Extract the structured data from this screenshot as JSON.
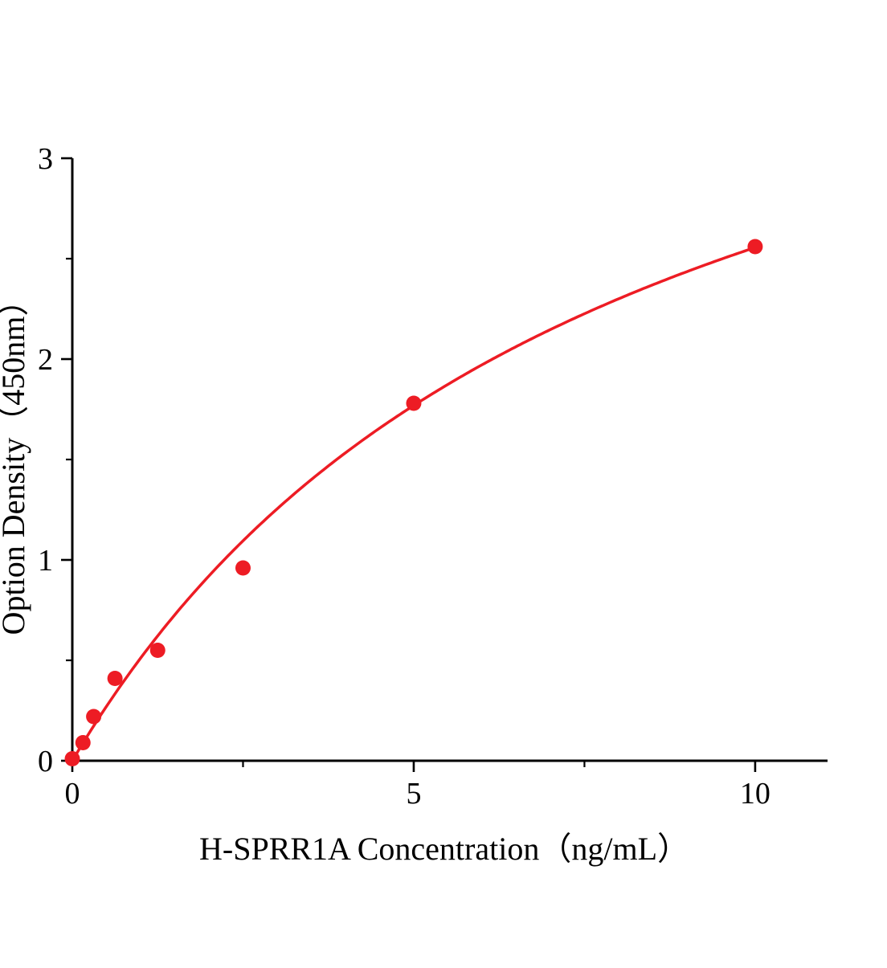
{
  "chart_data": {
    "type": "scatter",
    "title": "",
    "xlabel": "H-SPRR1A Concentration（ng/mL）",
    "ylabel": "Option Density（450nm）",
    "x": [
      0,
      0.156,
      0.313,
      0.625,
      1.25,
      2.5,
      5,
      10
    ],
    "y": [
      0.01,
      0.09,
      0.22,
      0.41,
      0.55,
      0.96,
      1.78,
      2.56
    ],
    "xlim": [
      0,
      11.06
    ],
    "ylim": [
      0,
      3
    ],
    "x_major_ticks": [
      0,
      5,
      10
    ],
    "x_minor_ticks": [
      2.5,
      7.5
    ],
    "y_major_ticks": [
      0,
      1,
      2,
      3
    ],
    "y_minor_ticks": [
      0.5,
      1.5,
      2.5
    ],
    "marker_color": "#ed1c24",
    "line_color": "#ed1c24",
    "axis_color": "#000000",
    "fit": {
      "type": "saturation",
      "a": 4.6,
      "b": 8.0
    },
    "grid": false,
    "legend": null
  }
}
